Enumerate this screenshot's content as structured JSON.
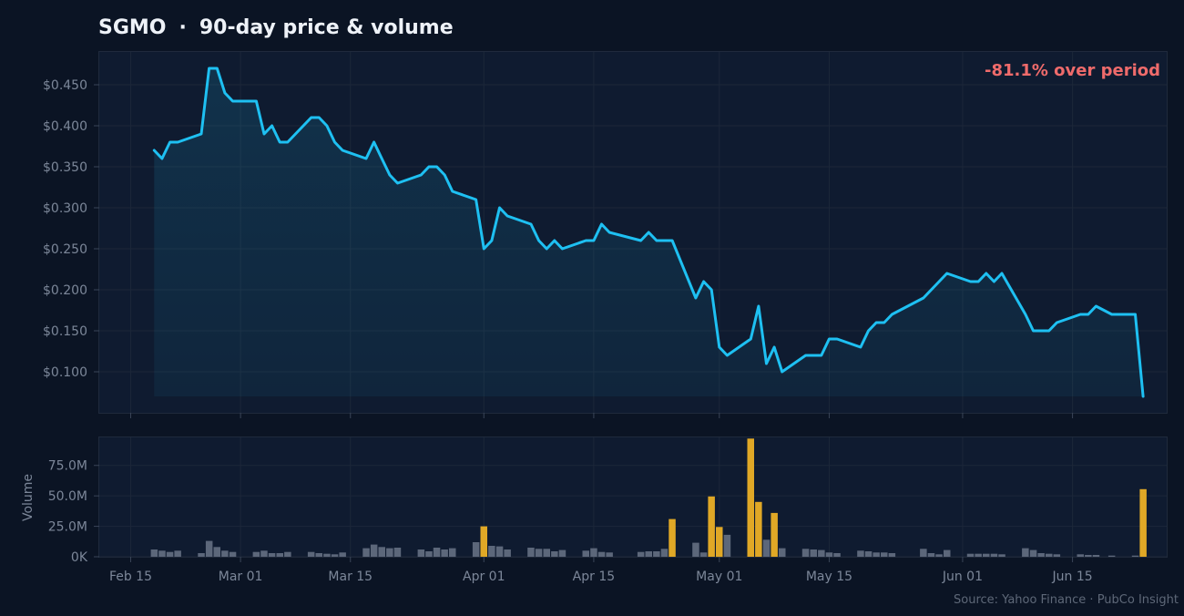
{
  "chart_data": [
    {
      "type": "area",
      "ticker": "SGMO",
      "title_sep": "·",
      "title": "90-day price & volume",
      "change_label": "-81.1% over period",
      "ylim": [
        0.05,
        0.49
      ],
      "yticks": [
        0.1,
        0.15,
        0.2,
        0.25,
        0.3,
        0.35,
        0.4,
        0.45
      ],
      "ytick_labels": [
        "$0.100",
        "$0.150",
        "$0.200",
        "$0.250",
        "$0.300",
        "$0.350",
        "$0.400",
        "$0.450"
      ],
      "xticks": [
        "2025-02-15",
        "2025-03-01",
        "2025-03-15",
        "2025-04-01",
        "2025-04-15",
        "2025-05-01",
        "2025-05-15",
        "2025-06-01",
        "2025-06-15"
      ],
      "xtick_labels": [
        "Feb 15",
        "Mar 01",
        "Mar 15",
        "Apr 01",
        "Apr 15",
        "May 01",
        "May 15",
        "Jun 01",
        "Jun 15"
      ],
      "xlim": [
        "2025-02-11",
        "2025-06-27"
      ],
      "grid": true,
      "series": [
        {
          "x": [
            "2025-02-18",
            "2025-02-19",
            "2025-02-20",
            "2025-02-21",
            "2025-02-24",
            "2025-02-25",
            "2025-02-26",
            "2025-02-27",
            "2025-02-28",
            "2025-03-03",
            "2025-03-04",
            "2025-03-05",
            "2025-03-06",
            "2025-03-07",
            "2025-03-10",
            "2025-03-11",
            "2025-03-12",
            "2025-03-13",
            "2025-03-14",
            "2025-03-17",
            "2025-03-18",
            "2025-03-19",
            "2025-03-20",
            "2025-03-21",
            "2025-03-24",
            "2025-03-25",
            "2025-03-26",
            "2025-03-27",
            "2025-03-28",
            "2025-03-31",
            "2025-04-01",
            "2025-04-02",
            "2025-04-03",
            "2025-04-04",
            "2025-04-07",
            "2025-04-08",
            "2025-04-09",
            "2025-04-10",
            "2025-04-11",
            "2025-04-14",
            "2025-04-15",
            "2025-04-16",
            "2025-04-17",
            "2025-04-21",
            "2025-04-22",
            "2025-04-23",
            "2025-04-24",
            "2025-04-25",
            "2025-04-28",
            "2025-04-29",
            "2025-04-30",
            "2025-05-01",
            "2025-05-02",
            "2025-05-05",
            "2025-05-06",
            "2025-05-07",
            "2025-05-08",
            "2025-05-09",
            "2025-05-12",
            "2025-05-13",
            "2025-05-14",
            "2025-05-15",
            "2025-05-16",
            "2025-05-19",
            "2025-05-20",
            "2025-05-21",
            "2025-05-22",
            "2025-05-23",
            "2025-05-27",
            "2025-05-28",
            "2025-05-29",
            "2025-05-30",
            "2025-06-02",
            "2025-06-03",
            "2025-06-04",
            "2025-06-05",
            "2025-06-06",
            "2025-06-09",
            "2025-06-10",
            "2025-06-11",
            "2025-06-12",
            "2025-06-13",
            "2025-06-16",
            "2025-06-17",
            "2025-06-18",
            "2025-06-20",
            "2025-06-23",
            "2025-06-24"
          ],
          "values": [
            0.37,
            0.36,
            0.38,
            0.38,
            0.39,
            0.47,
            0.47,
            0.44,
            0.43,
            0.43,
            0.39,
            0.4,
            0.38,
            0.38,
            0.41,
            0.41,
            0.4,
            0.38,
            0.37,
            0.36,
            0.38,
            0.36,
            0.34,
            0.33,
            0.34,
            0.35,
            0.35,
            0.34,
            0.32,
            0.31,
            0.25,
            0.26,
            0.3,
            0.29,
            0.28,
            0.26,
            0.25,
            0.26,
            0.25,
            0.26,
            0.26,
            0.28,
            0.27,
            0.26,
            0.27,
            0.26,
            0.26,
            0.26,
            0.19,
            0.21,
            0.2,
            0.13,
            0.12,
            0.14,
            0.18,
            0.11,
            0.13,
            0.1,
            0.12,
            0.12,
            0.12,
            0.14,
            0.14,
            0.13,
            0.15,
            0.16,
            0.16,
            0.17,
            0.19,
            0.2,
            0.21,
            0.22,
            0.21,
            0.21,
            0.22,
            0.21,
            0.22,
            0.17,
            0.15,
            0.15,
            0.15,
            0.16,
            0.17,
            0.17,
            0.18,
            0.17,
            0.17,
            0.07
          ],
          "color": "#1ec0f2"
        }
      ]
    },
    {
      "type": "bar",
      "ylabel": "Volume",
      "ylim": [
        0,
        98000000
      ],
      "yticks": [
        0,
        25000000,
        50000000,
        75000000
      ],
      "ytick_labels": [
        "0K",
        "25.0M",
        "50.0M",
        "75.0M"
      ],
      "normal_color": "#5c677a",
      "spike_color": "#e0a826",
      "spike_threshold": 20000000,
      "x": [
        "2025-02-18",
        "2025-02-19",
        "2025-02-20",
        "2025-02-21",
        "2025-02-24",
        "2025-02-25",
        "2025-02-26",
        "2025-02-27",
        "2025-02-28",
        "2025-03-03",
        "2025-03-04",
        "2025-03-05",
        "2025-03-06",
        "2025-03-07",
        "2025-03-10",
        "2025-03-11",
        "2025-03-12",
        "2025-03-13",
        "2025-03-14",
        "2025-03-17",
        "2025-03-18",
        "2025-03-19",
        "2025-03-20",
        "2025-03-21",
        "2025-03-24",
        "2025-03-25",
        "2025-03-26",
        "2025-03-27",
        "2025-03-28",
        "2025-03-31",
        "2025-04-01",
        "2025-04-02",
        "2025-04-03",
        "2025-04-04",
        "2025-04-07",
        "2025-04-08",
        "2025-04-09",
        "2025-04-10",
        "2025-04-11",
        "2025-04-14",
        "2025-04-15",
        "2025-04-16",
        "2025-04-17",
        "2025-04-21",
        "2025-04-22",
        "2025-04-23",
        "2025-04-24",
        "2025-04-25",
        "2025-04-28",
        "2025-04-29",
        "2025-04-30",
        "2025-05-01",
        "2025-05-02",
        "2025-05-05",
        "2025-05-06",
        "2025-05-07",
        "2025-05-08",
        "2025-05-09",
        "2025-05-12",
        "2025-05-13",
        "2025-05-14",
        "2025-05-15",
        "2025-05-16",
        "2025-05-19",
        "2025-05-20",
        "2025-05-21",
        "2025-05-22",
        "2025-05-23",
        "2025-05-27",
        "2025-05-28",
        "2025-05-29",
        "2025-05-30",
        "2025-06-02",
        "2025-06-03",
        "2025-06-04",
        "2025-06-05",
        "2025-06-06",
        "2025-06-09",
        "2025-06-10",
        "2025-06-11",
        "2025-06-12",
        "2025-06-13",
        "2025-06-16",
        "2025-06-17",
        "2025-06-18",
        "2025-06-20",
        "2025-06-23",
        "2025-06-24"
      ],
      "values": [
        6000000,
        5000000,
        4000000,
        5000000,
        3000000,
        13000000,
        8000000,
        5000000,
        4000000,
        4000000,
        5000000,
        3000000,
        3000000,
        4000000,
        4000000,
        3000000,
        2500000,
        2000000,
        3500000,
        7000000,
        10000000,
        8000000,
        7000000,
        7500000,
        6000000,
        4500000,
        7500000,
        6000000,
        7000000,
        12000000,
        25000000,
        9000000,
        8500000,
        6000000,
        7500000,
        6500000,
        6500000,
        4500000,
        5500000,
        5000000,
        7000000,
        4000000,
        3500000,
        4000000,
        4500000,
        4500000,
        6500000,
        31000000,
        11500000,
        3500000,
        49500000,
        24500000,
        18000000,
        97000000,
        45000000,
        14000000,
        36000000,
        7000000,
        6500000,
        6000000,
        5500000,
        3500000,
        3000000,
        5000000,
        4500000,
        3500000,
        3500000,
        3000000,
        6500000,
        3000000,
        2000000,
        5500000,
        2500000,
        2500000,
        2500000,
        2500000,
        2000000,
        7000000,
        5500000,
        3000000,
        2500000,
        2000000,
        2000000,
        1500000,
        1500000,
        1000000,
        1000000,
        55500000
      ]
    }
  ],
  "footer": {
    "source": "Source: Yahoo Finance · PubCo Insight"
  }
}
